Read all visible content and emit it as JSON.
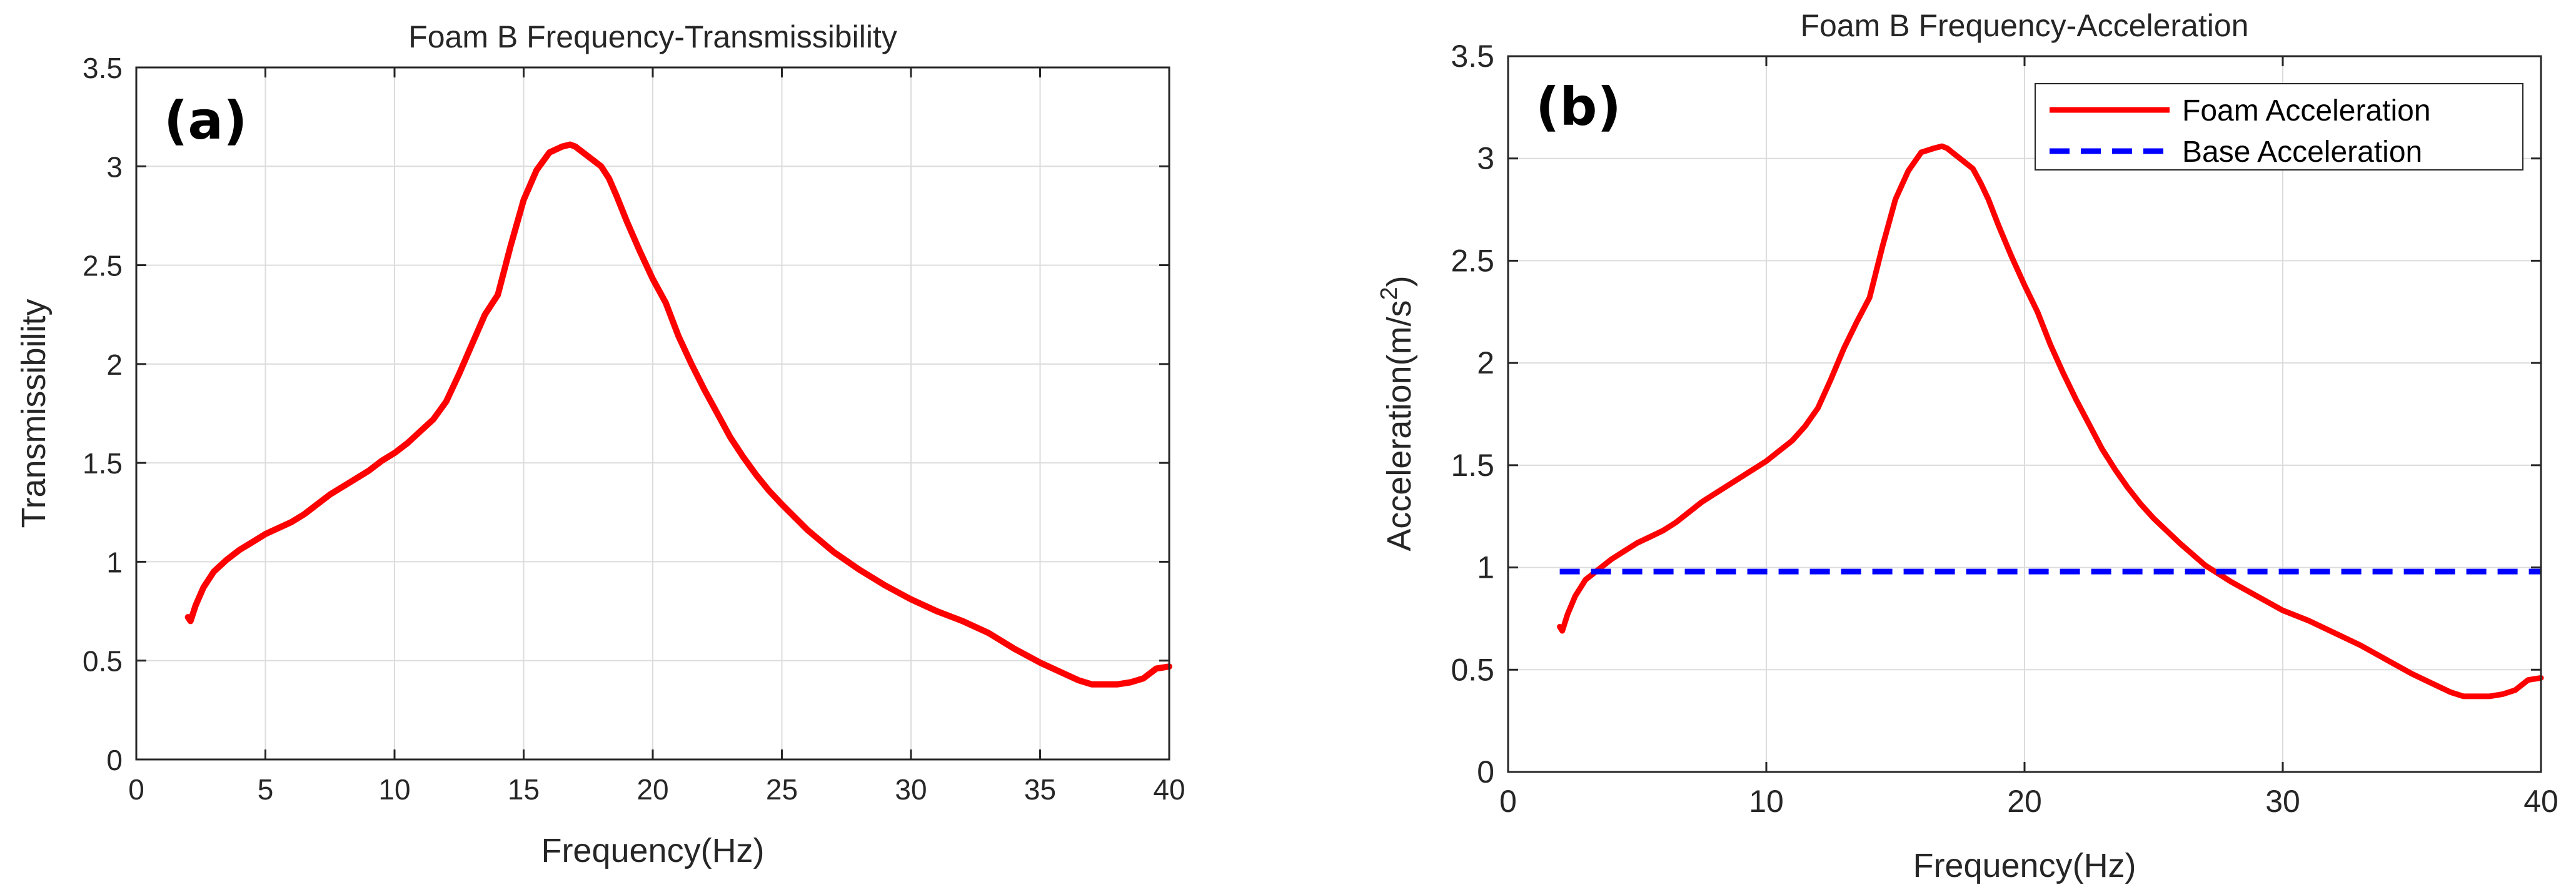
{
  "chart_data": [
    {
      "type": "line",
      "panel_label": "(a)",
      "title": "Foam B Frequency-Transmissibility",
      "xlabel": "Frequency(Hz)",
      "ylabel": "Transmissibility",
      "xlim": [
        0,
        40
      ],
      "ylim": [
        0,
        3.5
      ],
      "xticks": [
        0,
        5,
        10,
        15,
        20,
        25,
        30,
        35,
        40
      ],
      "xtick_labels": [
        "0",
        "5",
        "10",
        "15",
        "20",
        "25",
        "30",
        "35",
        "40"
      ],
      "yticks": [
        0,
        0.5,
        1,
        1.5,
        2,
        2.5,
        3,
        3.5
      ],
      "ytick_labels": [
        "0",
        "0.5",
        "1",
        "1.5",
        "2",
        "2.5",
        "3",
        "3.5"
      ],
      "grid": true,
      "series": [
        {
          "name": "Transmissibility",
          "color": "#ff0000",
          "style": "solid",
          "x": [
            2.0,
            2.1,
            2.3,
            2.6,
            3.0,
            3.5,
            4.0,
            4.5,
            5.0,
            5.5,
            6.0,
            6.5,
            7.0,
            7.5,
            8.0,
            8.5,
            9.0,
            9.5,
            10.0,
            10.5,
            11.0,
            11.5,
            12.0,
            12.5,
            13.0,
            13.5,
            14.0,
            14.5,
            15.0,
            15.5,
            16.0,
            16.5,
            16.8,
            17.0,
            17.3,
            17.6,
            18.0,
            18.3,
            18.6,
            19.0,
            19.5,
            20.0,
            20.5,
            21.0,
            21.5,
            22.0,
            22.5,
            23.0,
            23.5,
            24.0,
            24.5,
            25.0,
            26.0,
            27.0,
            28.0,
            29.0,
            30.0,
            31.0,
            32.0,
            33.0,
            34.0,
            35.0,
            35.5,
            36.0,
            36.5,
            37.0,
            37.5,
            38.0,
            38.5,
            39.0,
            39.5,
            40.0
          ],
          "y": [
            0.72,
            0.7,
            0.78,
            0.87,
            0.95,
            1.01,
            1.06,
            1.1,
            1.14,
            1.17,
            1.2,
            1.24,
            1.29,
            1.34,
            1.38,
            1.42,
            1.46,
            1.51,
            1.55,
            1.6,
            1.66,
            1.72,
            1.81,
            1.95,
            2.1,
            2.25,
            2.35,
            2.6,
            2.83,
            2.98,
            3.07,
            3.1,
            3.11,
            3.1,
            3.07,
            3.04,
            3.0,
            2.94,
            2.85,
            2.72,
            2.57,
            2.43,
            2.31,
            2.14,
            2.0,
            1.87,
            1.75,
            1.63,
            1.53,
            1.44,
            1.36,
            1.29,
            1.16,
            1.05,
            0.96,
            0.88,
            0.81,
            0.75,
            0.7,
            0.64,
            0.56,
            0.49,
            0.46,
            0.43,
            0.4,
            0.38,
            0.38,
            0.38,
            0.39,
            0.41,
            0.46,
            0.47
          ]
        }
      ]
    },
    {
      "type": "line",
      "panel_label": "(b)",
      "title": "Foam B Frequency-Acceleration",
      "xlabel": "Frequency(Hz)",
      "ylabel": "Acceleration(m/s",
      "ylabel_superscript": "2",
      "ylabel_suffix": ")",
      "xlim": [
        0,
        40
      ],
      "ylim": [
        0,
        3.5
      ],
      "xticks": [
        0,
        10,
        20,
        30,
        40
      ],
      "xtick_labels": [
        "0",
        "10",
        "20",
        "30",
        "40"
      ],
      "yticks": [
        0,
        0.5,
        1,
        1.5,
        2,
        2.5,
        3,
        3.5
      ],
      "ytick_labels": [
        "0",
        "0.5",
        "1",
        "1.5",
        "2",
        "2.5",
        "3",
        "3.5"
      ],
      "grid": true,
      "legend_position": "top-right",
      "series": [
        {
          "name": "Foam Acceleration",
          "color": "#ff0000",
          "style": "solid",
          "x": [
            2.0,
            2.1,
            2.3,
            2.6,
            3.0,
            3.5,
            4.0,
            4.5,
            5.0,
            5.5,
            6.0,
            6.5,
            7.0,
            7.5,
            8.0,
            8.5,
            9.0,
            9.5,
            10.0,
            10.5,
            11.0,
            11.5,
            12.0,
            12.5,
            13.0,
            13.5,
            14.0,
            14.5,
            15.0,
            15.5,
            16.0,
            16.5,
            16.8,
            17.0,
            17.3,
            17.6,
            18.0,
            18.3,
            18.6,
            19.0,
            19.5,
            20.0,
            20.5,
            21.0,
            21.5,
            22.0,
            22.5,
            23.0,
            23.5,
            24.0,
            24.5,
            25.0,
            26.0,
            27.0,
            28.0,
            29.0,
            30.0,
            31.0,
            32.0,
            33.0,
            34.0,
            35.0,
            35.5,
            36.0,
            36.5,
            37.0,
            37.5,
            38.0,
            38.5,
            39.0,
            39.5,
            40.0
          ],
          "y": [
            0.71,
            0.69,
            0.77,
            0.86,
            0.94,
            0.99,
            1.04,
            1.08,
            1.12,
            1.15,
            1.18,
            1.22,
            1.27,
            1.32,
            1.36,
            1.4,
            1.44,
            1.48,
            1.52,
            1.57,
            1.62,
            1.69,
            1.78,
            1.92,
            2.07,
            2.2,
            2.32,
            2.57,
            2.8,
            2.94,
            3.03,
            3.05,
            3.06,
            3.05,
            3.02,
            2.99,
            2.95,
            2.88,
            2.8,
            2.67,
            2.52,
            2.38,
            2.25,
            2.09,
            1.95,
            1.82,
            1.7,
            1.58,
            1.48,
            1.39,
            1.31,
            1.24,
            1.12,
            1.01,
            0.93,
            0.86,
            0.79,
            0.74,
            0.68,
            0.62,
            0.55,
            0.48,
            0.45,
            0.42,
            0.39,
            0.37,
            0.37,
            0.37,
            0.38,
            0.4,
            0.45,
            0.46
          ]
        },
        {
          "name": "Base Acceleration",
          "color": "#0000ff",
          "style": "dashed",
          "x": [
            2.0,
            40.0
          ],
          "y": [
            0.98,
            0.98
          ]
        }
      ]
    }
  ]
}
